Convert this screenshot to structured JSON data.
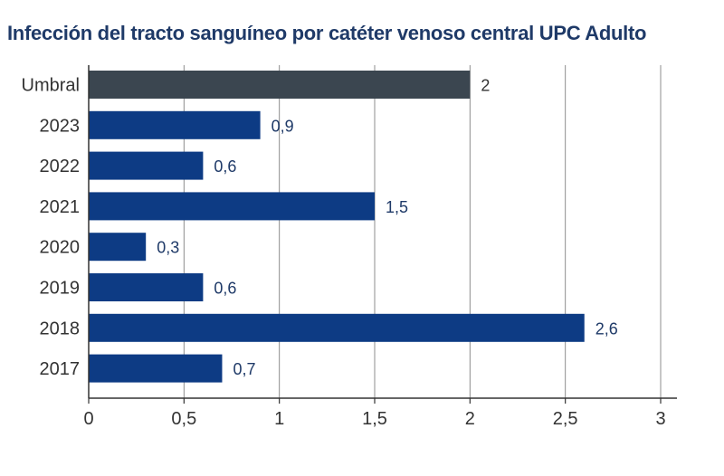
{
  "chart_data": {
    "type": "bar",
    "orientation": "horizontal",
    "title": "Infección del tracto sanguíneo por catéter venoso central UPC Adulto",
    "xlabel": "",
    "ylabel": "",
    "categories": [
      "Umbral",
      "2023",
      "2022",
      "2021",
      "2020",
      "2019",
      "2018",
      "2017"
    ],
    "values": [
      2,
      0.9,
      0.6,
      1.5,
      0.3,
      0.6,
      2.6,
      0.7
    ],
    "data_labels": [
      "2",
      "0,9",
      "0,6",
      "1,5",
      "0,3",
      "0,6",
      "2,6",
      "0,7"
    ],
    "bar_colors": [
      "#3b4650",
      "#0d3b84",
      "#0d3b84",
      "#0d3b84",
      "#0d3b84",
      "#0d3b84",
      "#0d3b84",
      "#0d3b84"
    ],
    "xlim": [
      0,
      3
    ],
    "xticks": [
      0,
      0.5,
      1,
      1.5,
      2,
      2.5,
      3
    ],
    "xtick_labels": [
      "0",
      "0,5",
      "1",
      "1,5",
      "2",
      "2,5",
      "3"
    ],
    "grid": "vertical",
    "legend": "none"
  }
}
